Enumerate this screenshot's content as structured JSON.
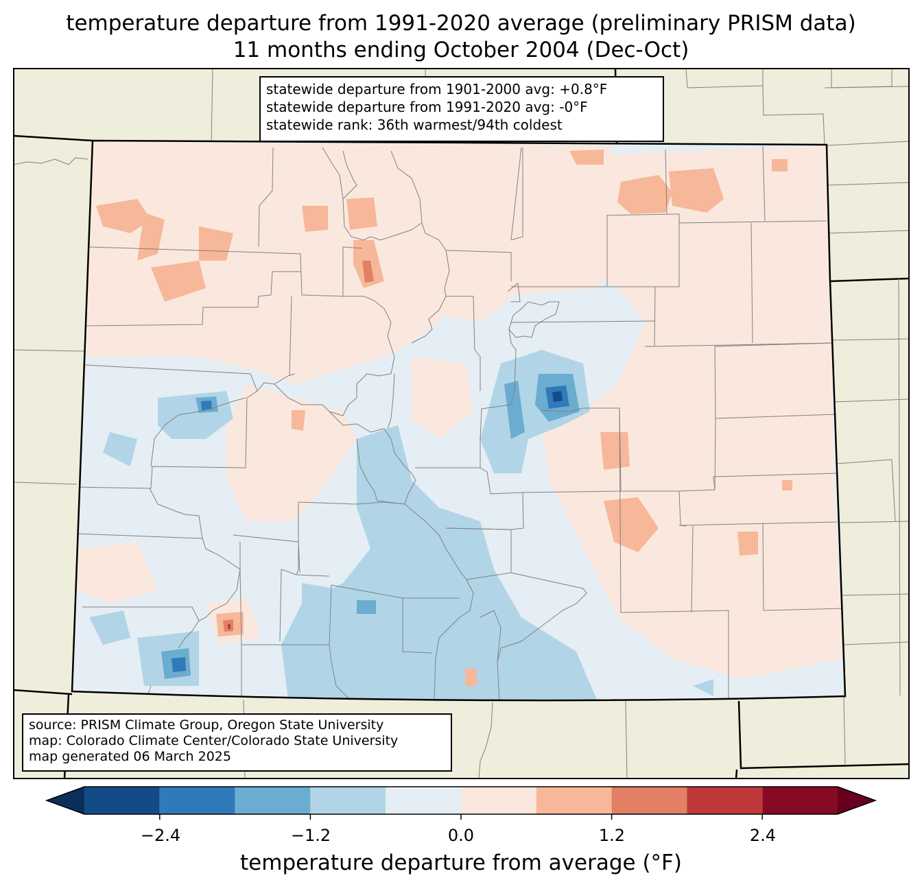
{
  "title": {
    "line1": "temperature departure from 1991-2020 average (preliminary PRISM data)",
    "line2": "11 months ending October 2004 (Dec-Oct)"
  },
  "stats_box": {
    "line1": "statewide departure from 1901-2000 avg: +0.8°F",
    "line2": "statewide departure from 1991-2020 avg: -0°F",
    "line3": "statewide rank: 36th warmest/94th coldest"
  },
  "source_box": {
    "line1": "source: PRISM Climate Group, Oregon State University",
    "line2": "map: Colorado Climate Center/Colorado State University",
    "line3": "map generated 06 March 2025"
  },
  "colorbar": {
    "label": "temperature departure from average (°F)",
    "ticks": [
      "−2.4",
      "−1.2",
      "0.0",
      "1.2",
      "2.4"
    ],
    "bins": [
      {
        "min": -3.0,
        "max": -2.4,
        "color": "#134b87"
      },
      {
        "min": -2.4,
        "max": -1.8,
        "color": "#2f7ab9"
      },
      {
        "min": -1.8,
        "max": -1.2,
        "color": "#6bacd1"
      },
      {
        "min": -1.2,
        "max": -0.6,
        "color": "#b1d5e7"
      },
      {
        "min": -0.6,
        "max": 0.0,
        "color": "#e5eef4"
      },
      {
        "min": 0.0,
        "max": 0.6,
        "color": "#fae8de"
      },
      {
        "min": 0.6,
        "max": 1.2,
        "color": "#f7b799"
      },
      {
        "min": 1.2,
        "max": 1.8,
        "color": "#e27f65"
      },
      {
        "min": 1.8,
        "max": 2.4,
        "color": "#c0383a"
      },
      {
        "min": 2.4,
        "max": 3.0,
        "color": "#870a25"
      }
    ],
    "under_color": "#0a2f5c",
    "over_color": "#67001f"
  },
  "colors": {
    "land_outside": "#efeddb",
    "state_border": "#000000",
    "county_lines": "#808080"
  }
}
